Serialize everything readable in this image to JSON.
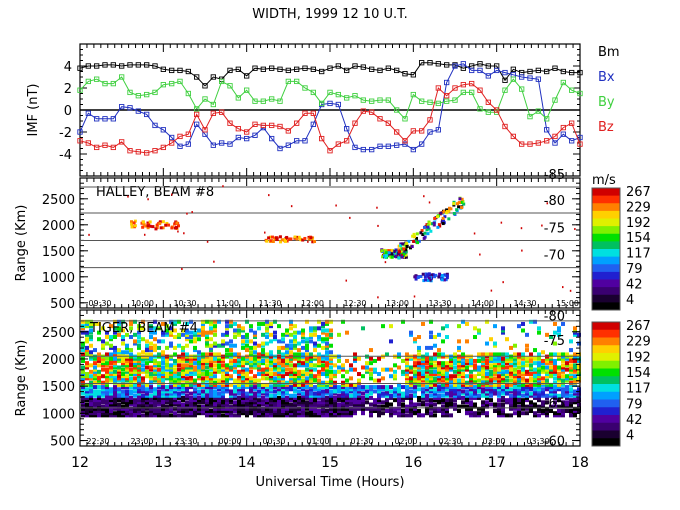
{
  "chart_data": [
    {
      "type": "line",
      "title": "WIDTH, 1999 12 10 U.T.",
      "ylabel": "IMF (nT)",
      "xlabel": "Universal Time (Hours)",
      "xlim": [
        12,
        18
      ],
      "ylim": [
        -6,
        6
      ],
      "yticks": [
        "4",
        "2",
        "0",
        "-2",
        "-4"
      ],
      "ytick_values": [
        4,
        2,
        0,
        -2,
        -4
      ],
      "x": [
        12.0,
        12.1,
        12.2,
        12.3,
        12.4,
        12.5,
        12.6,
        12.7,
        12.8,
        12.9,
        13.0,
        13.1,
        13.2,
        13.3,
        13.4,
        13.5,
        13.6,
        13.7,
        13.8,
        13.9,
        14.0,
        14.1,
        14.2,
        14.3,
        14.4,
        14.5,
        14.6,
        14.7,
        14.8,
        14.9,
        15.0,
        15.1,
        15.2,
        15.3,
        15.4,
        15.5,
        15.6,
        15.7,
        15.8,
        15.9,
        16.0,
        16.1,
        16.2,
        16.3,
        16.4,
        16.5,
        16.6,
        16.7,
        16.8,
        16.9,
        17.0,
        17.1,
        17.2,
        17.3,
        17.4,
        17.5,
        17.6,
        17.7,
        17.8,
        17.9,
        18.0
      ],
      "series": [
        {
          "name": "Bm",
          "color": "#000000",
          "values": [
            3.8,
            4.0,
            4.0,
            4.1,
            4.1,
            4.0,
            4.1,
            4.1,
            4.1,
            4.0,
            3.7,
            3.6,
            3.6,
            3.5,
            3.0,
            2.2,
            3.0,
            2.8,
            3.6,
            3.7,
            3.1,
            3.8,
            3.7,
            3.8,
            3.7,
            3.6,
            3.7,
            3.8,
            3.7,
            3.5,
            3.8,
            4.0,
            3.6,
            4.0,
            3.9,
            3.7,
            3.6,
            3.8,
            3.6,
            3.3,
            3.2,
            4.3,
            4.3,
            4.2,
            4.1,
            4.1,
            3.8,
            4.0,
            4.2,
            4.0,
            4.0,
            2.7,
            3.7,
            3.4,
            3.5,
            3.6,
            3.5,
            3.8,
            3.5,
            3.4,
            3.4
          ]
        },
        {
          "name": "Bx",
          "color": "#2030c0",
          "values": [
            -2.0,
            -0.3,
            -0.8,
            -0.8,
            -0.8,
            0.3,
            0.2,
            -0.1,
            -0.4,
            -1.4,
            -1.8,
            -2.5,
            -3.3,
            -3.1,
            -1.3,
            -2.2,
            -3.2,
            -3.0,
            -3.1,
            -2.5,
            -2.6,
            -2.3,
            -1.6,
            -2.6,
            -3.5,
            -3.2,
            -2.8,
            -2.8,
            -1.3,
            0.5,
            0.6,
            0.5,
            -1.7,
            -3.4,
            -3.6,
            -3.6,
            -3.3,
            -3.3,
            -3.2,
            -3.1,
            -3.6,
            -3.1,
            -2.0,
            -1.8,
            2.5,
            4.0,
            4.2,
            3.6,
            3.6,
            3.1,
            3.6,
            3.4,
            3.2,
            3.0,
            2.9,
            2.8,
            -1.8,
            -3.0,
            -2.2,
            -2.8,
            -2.5
          ]
        },
        {
          "name": "By",
          "color": "#40d040",
          "values": [
            1.8,
            2.6,
            2.8,
            2.4,
            2.4,
            3.0,
            1.6,
            1.3,
            1.4,
            1.6,
            2.3,
            2.4,
            2.6,
            1.5,
            0.1,
            1.0,
            0.5,
            2.6,
            2.2,
            1.1,
            1.8,
            0.8,
            0.8,
            1.0,
            0.8,
            2.6,
            2.6,
            2.0,
            1.6,
            0.6,
            1.6,
            1.4,
            1.1,
            1.3,
            0.9,
            0.8,
            0.9,
            0.9,
            0.0,
            -0.8,
            1.4,
            0.8,
            0.7,
            0.6,
            0.8,
            0.9,
            1.6,
            1.6,
            0.1,
            -0.2,
            -0.2,
            1.8,
            2.8,
            1.9,
            -0.6,
            -0.1,
            -0.8,
            0.9,
            2.5,
            1.8,
            1.5
          ]
        },
        {
          "name": "Bz",
          "color": "#e02020",
          "values": [
            -2.8,
            -3.0,
            -3.4,
            -3.2,
            -3.4,
            -2.9,
            -3.7,
            -3.8,
            -3.9,
            -3.7,
            -3.4,
            -3.0,
            -2.4,
            -2.2,
            -0.4,
            -1.8,
            -0.3,
            -0.2,
            -1.2,
            -1.7,
            -2.0,
            -1.3,
            -1.4,
            -1.4,
            -1.5,
            -1.9,
            -1.2,
            -0.3,
            -0.3,
            -2.6,
            -3.7,
            -3.1,
            -2.8,
            -1.2,
            -0.1,
            -0.2,
            -0.8,
            -1.2,
            -2.0,
            -2.8,
            -1.9,
            -1.9,
            -0.9,
            2.0,
            1.3,
            2.0,
            2.3,
            2.4,
            1.8,
            0.7,
            0.0,
            -1.5,
            -2.4,
            -3.1,
            -3.1,
            -3.0,
            -2.8,
            -2.4,
            -1.6,
            -1.2,
            -3.1
          ]
        }
      ],
      "legend": [
        "Bm",
        "Bx",
        "By",
        "Bz"
      ],
      "legend_position": "right",
      "zero_line": true
    },
    {
      "type": "heatmap",
      "label": "HALLEY, BEAM #8",
      "ylabel": "Range (Km)",
      "yticks": [
        "2500",
        "2000",
        "1500",
        "1000",
        "500"
      ],
      "ytick_values": [
        2500,
        2000,
        1500,
        1000,
        500
      ],
      "ylim": [
        400,
        2900
      ],
      "xlim": [
        12,
        18
      ],
      "mlt_ticks": [
        "09:30",
        "10:00",
        "10:30",
        "11:00",
        "11:30",
        "12:00",
        "12:30",
        "13:00",
        "13:30",
        "14:00",
        "14:30",
        "15:00"
      ],
      "latitude_labels": [
        "-85",
        "-80",
        "-75",
        "-70"
      ],
      "latitude_values": [
        2650,
        2150,
        1620,
        1100
      ],
      "colorbar": {
        "unit": "m/s",
        "ticks": [
          "267",
          "229",
          "192",
          "154",
          "117",
          "79",
          "42",
          "4"
        ]
      },
      "scatter_regions": [
        {
          "x": [
            12.6,
            13.2
          ],
          "y": [
            1950,
            2100
          ],
          "level": "high"
        },
        {
          "x": [
            14.2,
            14.8
          ],
          "y": [
            1700,
            1800
          ],
          "level": "high"
        },
        {
          "x": [
            15.6,
            15.9
          ],
          "y": [
            1400,
            1550
          ],
          "level": "mixed"
        },
        {
          "x": [
            15.8,
            16.6
          ],
          "y": [
            1500,
            2500
          ],
          "level": "mixed"
        },
        {
          "x": [
            16.0,
            16.4
          ],
          "y": [
            950,
            1100
          ],
          "level": "low"
        }
      ]
    },
    {
      "type": "heatmap",
      "label": "TIGER, BEAM #4",
      "ylabel": "Range (Km)",
      "yticks": [
        "2500",
        "2000",
        "1500",
        "1000",
        "500"
      ],
      "ytick_values": [
        2500,
        2000,
        1500,
        1000,
        500
      ],
      "ylim": [
        400,
        2900
      ],
      "xlim": [
        12,
        18
      ],
      "mlt_ticks": [
        "22:30",
        "23:00",
        "23:30",
        "00:00",
        "00:30",
        "01:00",
        "01:30",
        "02:00",
        "02:30",
        "03:00",
        "03:30"
      ],
      "latitude_labels": [
        "-80",
        "-75",
        "-65",
        "-60"
      ],
      "latitude_values": [
        2800,
        2350,
        1200,
        500
      ],
      "colorbar": {
        "unit": "m/s",
        "ticks": [
          "267",
          "229",
          "192",
          "154",
          "117",
          "79",
          "42",
          "4"
        ]
      },
      "xticks": [
        "12",
        "13",
        "14",
        "15",
        "16",
        "17",
        "18"
      ],
      "xlabel": "Universal Time (Hours)"
    }
  ],
  "colors": {
    "frame": "#000000",
    "grid": "#555555",
    "scale": [
      "#000000",
      "#1a0030",
      "#3a0070",
      "#5000a0",
      "#2020d0",
      "#2060f0",
      "#00a0ff",
      "#00e0e0",
      "#00c060",
      "#00e000",
      "#80f000",
      "#e0f000",
      "#ffd000",
      "#ff8000",
      "#ff3000",
      "#d00000"
    ]
  }
}
